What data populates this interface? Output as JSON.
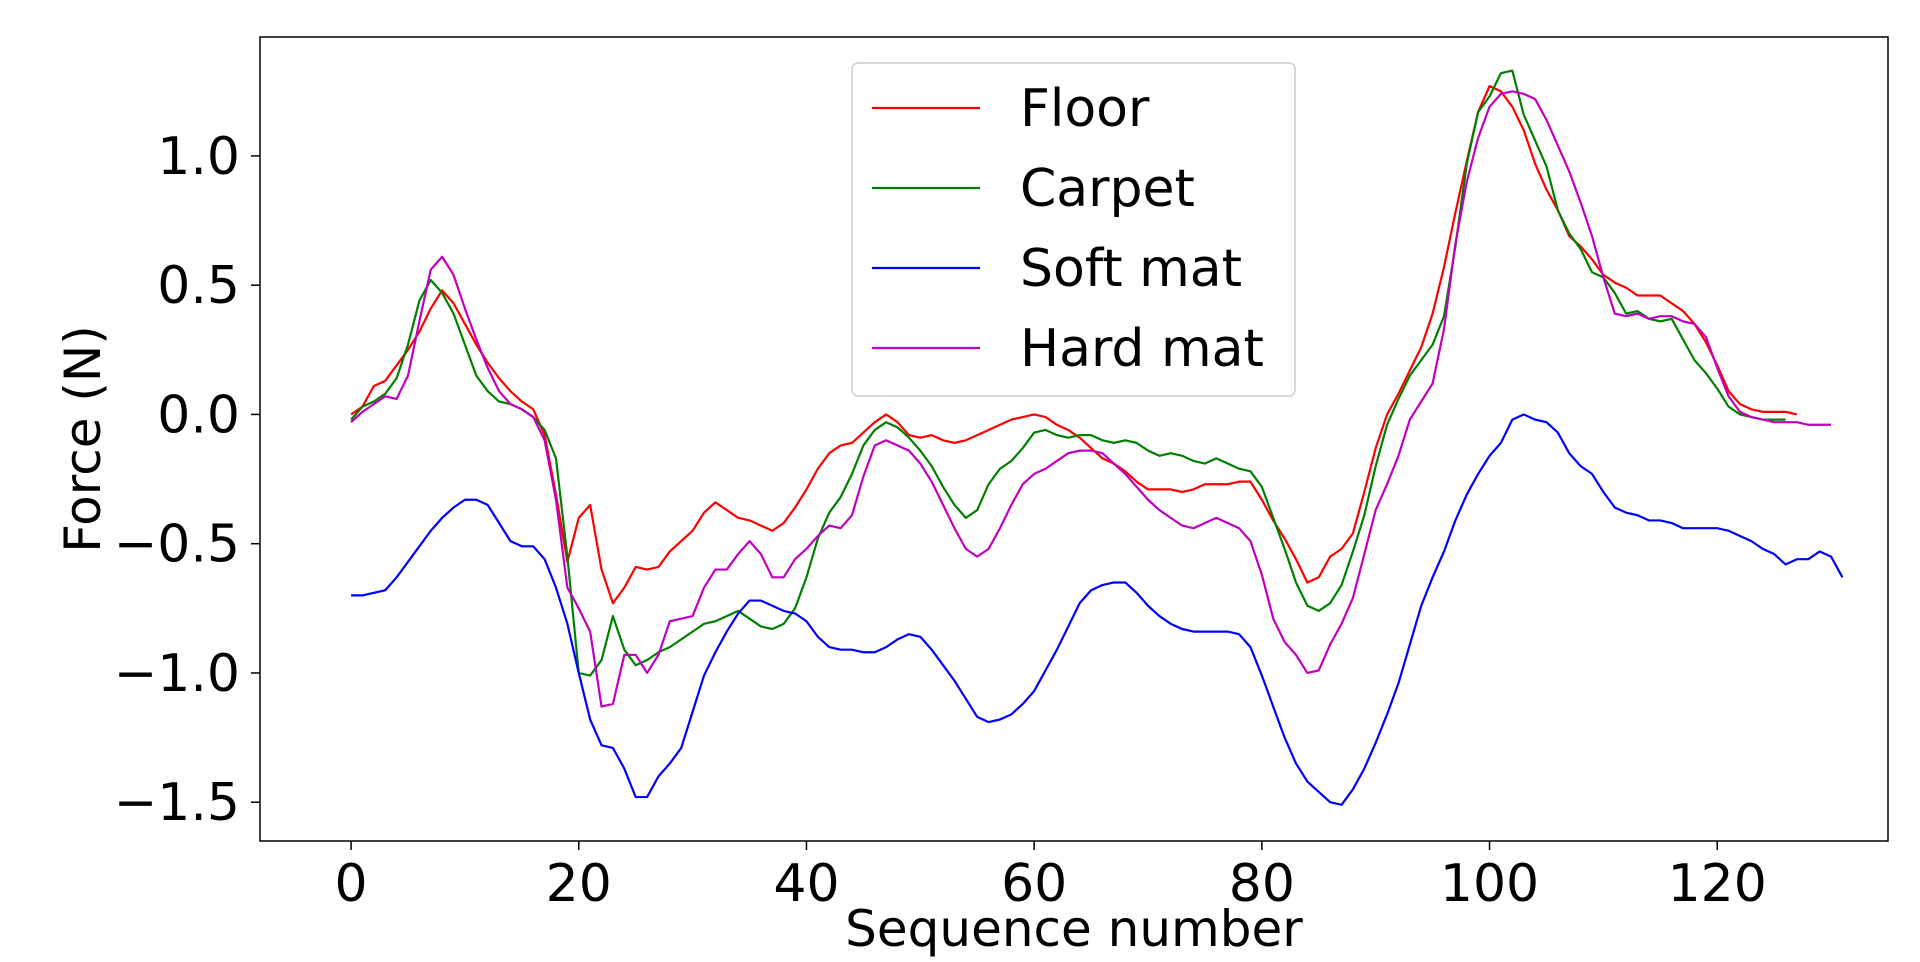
{
  "chart_data": {
    "type": "line",
    "xlabel": "Sequence number",
    "ylabel": "Force (N)",
    "xlim": [
      -8,
      135
    ],
    "ylim": [
      -1.65,
      1.46
    ],
    "xticks": [
      0,
      20,
      40,
      60,
      80,
      100,
      120
    ],
    "yticks": [
      1.0,
      0.5,
      0.0,
      -0.5,
      -1.0,
      -1.5
    ],
    "ytick_labels": [
      "1.0",
      "0.5",
      "0.0",
      "−0.5",
      "−1.0",
      "−1.5"
    ],
    "legend_position": "top-center",
    "grid": false,
    "series": [
      {
        "name": "Floor",
        "color": "#ff0000",
        "x_start": 0,
        "values": [
          0.0,
          0.03,
          0.11,
          0.13,
          0.19,
          0.25,
          0.32,
          0.41,
          0.48,
          0.43,
          0.35,
          0.27,
          0.2,
          0.14,
          0.09,
          0.05,
          0.02,
          -0.08,
          -0.31,
          -0.57,
          -0.4,
          -0.35,
          -0.6,
          -0.73,
          -0.67,
          -0.59,
          -0.6,
          -0.59,
          -0.53,
          -0.49,
          -0.45,
          -0.38,
          -0.34,
          -0.37,
          -0.4,
          -0.41,
          -0.43,
          -0.45,
          -0.42,
          -0.36,
          -0.29,
          -0.21,
          -0.15,
          -0.12,
          -0.11,
          -0.07,
          -0.03,
          0.0,
          -0.03,
          -0.08,
          -0.09,
          -0.08,
          -0.1,
          -0.11,
          -0.1,
          -0.08,
          -0.06,
          -0.04,
          -0.02,
          -0.01,
          0.0,
          -0.01,
          -0.04,
          -0.06,
          -0.09,
          -0.13,
          -0.17,
          -0.19,
          -0.22,
          -0.26,
          -0.29,
          -0.29,
          -0.29,
          -0.3,
          -0.29,
          -0.27,
          -0.27,
          -0.27,
          -0.26,
          -0.26,
          -0.33,
          -0.41,
          -0.48,
          -0.56,
          -0.65,
          -0.63,
          -0.55,
          -0.52,
          -0.46,
          -0.3,
          -0.13,
          0.0,
          0.08,
          0.17,
          0.26,
          0.39,
          0.57,
          0.78,
          0.98,
          1.17,
          1.27,
          1.25,
          1.19,
          1.1,
          0.97,
          0.87,
          0.79,
          0.69,
          0.65,
          0.6,
          0.54,
          0.51,
          0.49,
          0.46,
          0.46,
          0.46,
          0.43,
          0.4,
          0.35,
          0.28,
          0.19,
          0.09,
          0.04,
          0.02,
          0.01,
          0.01,
          0.01,
          0.0
        ]
      },
      {
        "name": "Carpet",
        "color": "#008000",
        "x_start": 0,
        "values": [
          -0.02,
          0.03,
          0.05,
          0.08,
          0.14,
          0.27,
          0.44,
          0.52,
          0.47,
          0.39,
          0.27,
          0.15,
          0.09,
          0.05,
          0.04,
          0.02,
          -0.01,
          -0.06,
          -0.17,
          -0.55,
          -1.0,
          -1.01,
          -0.95,
          -0.78,
          -0.91,
          -0.97,
          -0.95,
          -0.92,
          -0.9,
          -0.87,
          -0.84,
          -0.81,
          -0.8,
          -0.78,
          -0.76,
          -0.79,
          -0.82,
          -0.83,
          -0.81,
          -0.75,
          -0.63,
          -0.48,
          -0.38,
          -0.32,
          -0.23,
          -0.12,
          -0.06,
          -0.03,
          -0.05,
          -0.09,
          -0.14,
          -0.2,
          -0.28,
          -0.35,
          -0.4,
          -0.37,
          -0.27,
          -0.21,
          -0.18,
          -0.13,
          -0.07,
          -0.06,
          -0.08,
          -0.09,
          -0.08,
          -0.08,
          -0.1,
          -0.11,
          -0.1,
          -0.11,
          -0.14,
          -0.16,
          -0.15,
          -0.16,
          -0.18,
          -0.19,
          -0.17,
          -0.19,
          -0.21,
          -0.22,
          -0.28,
          -0.4,
          -0.52,
          -0.65,
          -0.74,
          -0.76,
          -0.73,
          -0.66,
          -0.53,
          -0.39,
          -0.2,
          -0.04,
          0.06,
          0.15,
          0.21,
          0.27,
          0.38,
          0.65,
          0.97,
          1.17,
          1.23,
          1.32,
          1.33,
          1.16,
          1.06,
          0.96,
          0.79,
          0.7,
          0.64,
          0.55,
          0.53,
          0.47,
          0.39,
          0.4,
          0.37,
          0.36,
          0.37,
          0.29,
          0.21,
          0.16,
          0.1,
          0.03,
          0.0,
          -0.01,
          -0.02,
          -0.02,
          -0.02
        ]
      },
      {
        "name": "Soft mat",
        "color": "#0000ff",
        "x_start": 0,
        "values": [
          -0.7,
          -0.7,
          -0.69,
          -0.68,
          -0.63,
          -0.57,
          -0.51,
          -0.45,
          -0.4,
          -0.36,
          -0.33,
          -0.33,
          -0.35,
          -0.42,
          -0.49,
          -0.51,
          -0.51,
          -0.56,
          -0.67,
          -0.81,
          -1.0,
          -1.18,
          -1.28,
          -1.29,
          -1.37,
          -1.48,
          -1.48,
          -1.4,
          -1.35,
          -1.29,
          -1.15,
          -1.01,
          -0.92,
          -0.84,
          -0.77,
          -0.72,
          -0.72,
          -0.74,
          -0.76,
          -0.77,
          -0.8,
          -0.86,
          -0.9,
          -0.91,
          -0.91,
          -0.92,
          -0.92,
          -0.9,
          -0.87,
          -0.85,
          -0.86,
          -0.91,
          -0.97,
          -1.03,
          -1.1,
          -1.17,
          -1.19,
          -1.18,
          -1.16,
          -1.12,
          -1.07,
          -0.99,
          -0.91,
          -0.82,
          -0.73,
          -0.68,
          -0.66,
          -0.65,
          -0.65,
          -0.69,
          -0.74,
          -0.78,
          -0.81,
          -0.83,
          -0.84,
          -0.84,
          -0.84,
          -0.84,
          -0.85,
          -0.9,
          -1.01,
          -1.13,
          -1.25,
          -1.35,
          -1.42,
          -1.46,
          -1.5,
          -1.51,
          -1.45,
          -1.37,
          -1.27,
          -1.16,
          -1.04,
          -0.89,
          -0.74,
          -0.63,
          -0.53,
          -0.41,
          -0.31,
          -0.23,
          -0.16,
          -0.11,
          -0.02,
          0.0,
          -0.02,
          -0.03,
          -0.07,
          -0.15,
          -0.2,
          -0.23,
          -0.3,
          -0.36,
          -0.38,
          -0.39,
          -0.41,
          -0.41,
          -0.42,
          -0.44,
          -0.44,
          -0.44,
          -0.44,
          -0.45,
          -0.47,
          -0.49,
          -0.52,
          -0.54,
          -0.58,
          -0.56,
          -0.56,
          -0.53,
          -0.55,
          -0.63
        ]
      },
      {
        "name": "Hard mat",
        "color": "#c000c0",
        "x_start": 0,
        "values": [
          -0.03,
          0.01,
          0.04,
          0.07,
          0.06,
          0.15,
          0.36,
          0.56,
          0.61,
          0.54,
          0.41,
          0.29,
          0.18,
          0.09,
          0.04,
          0.02,
          -0.01,
          -0.1,
          -0.33,
          -0.67,
          -0.75,
          -0.84,
          -1.13,
          -1.12,
          -0.93,
          -0.93,
          -1.0,
          -0.93,
          -0.8,
          -0.79,
          -0.78,
          -0.67,
          -0.6,
          -0.6,
          -0.54,
          -0.49,
          -0.54,
          -0.63,
          -0.63,
          -0.56,
          -0.52,
          -0.47,
          -0.43,
          -0.44,
          -0.39,
          -0.24,
          -0.12,
          -0.1,
          -0.12,
          -0.14,
          -0.19,
          -0.26,
          -0.35,
          -0.44,
          -0.52,
          -0.55,
          -0.52,
          -0.44,
          -0.35,
          -0.27,
          -0.23,
          -0.21,
          -0.18,
          -0.15,
          -0.14,
          -0.14,
          -0.15,
          -0.19,
          -0.23,
          -0.28,
          -0.33,
          -0.37,
          -0.4,
          -0.43,
          -0.44,
          -0.42,
          -0.4,
          -0.42,
          -0.44,
          -0.49,
          -0.62,
          -0.79,
          -0.88,
          -0.93,
          -1.0,
          -0.99,
          -0.89,
          -0.81,
          -0.71,
          -0.54,
          -0.37,
          -0.27,
          -0.16,
          -0.02,
          0.05,
          0.12,
          0.33,
          0.66,
          0.9,
          1.07,
          1.19,
          1.24,
          1.25,
          1.24,
          1.22,
          1.14,
          1.04,
          0.94,
          0.82,
          0.69,
          0.53,
          0.39,
          0.38,
          0.39,
          0.37,
          0.38,
          0.38,
          0.36,
          0.35,
          0.3,
          0.18,
          0.07,
          0.01,
          -0.01,
          -0.02,
          -0.03,
          -0.03,
          -0.03,
          -0.04,
          -0.04,
          -0.04
        ]
      }
    ]
  }
}
